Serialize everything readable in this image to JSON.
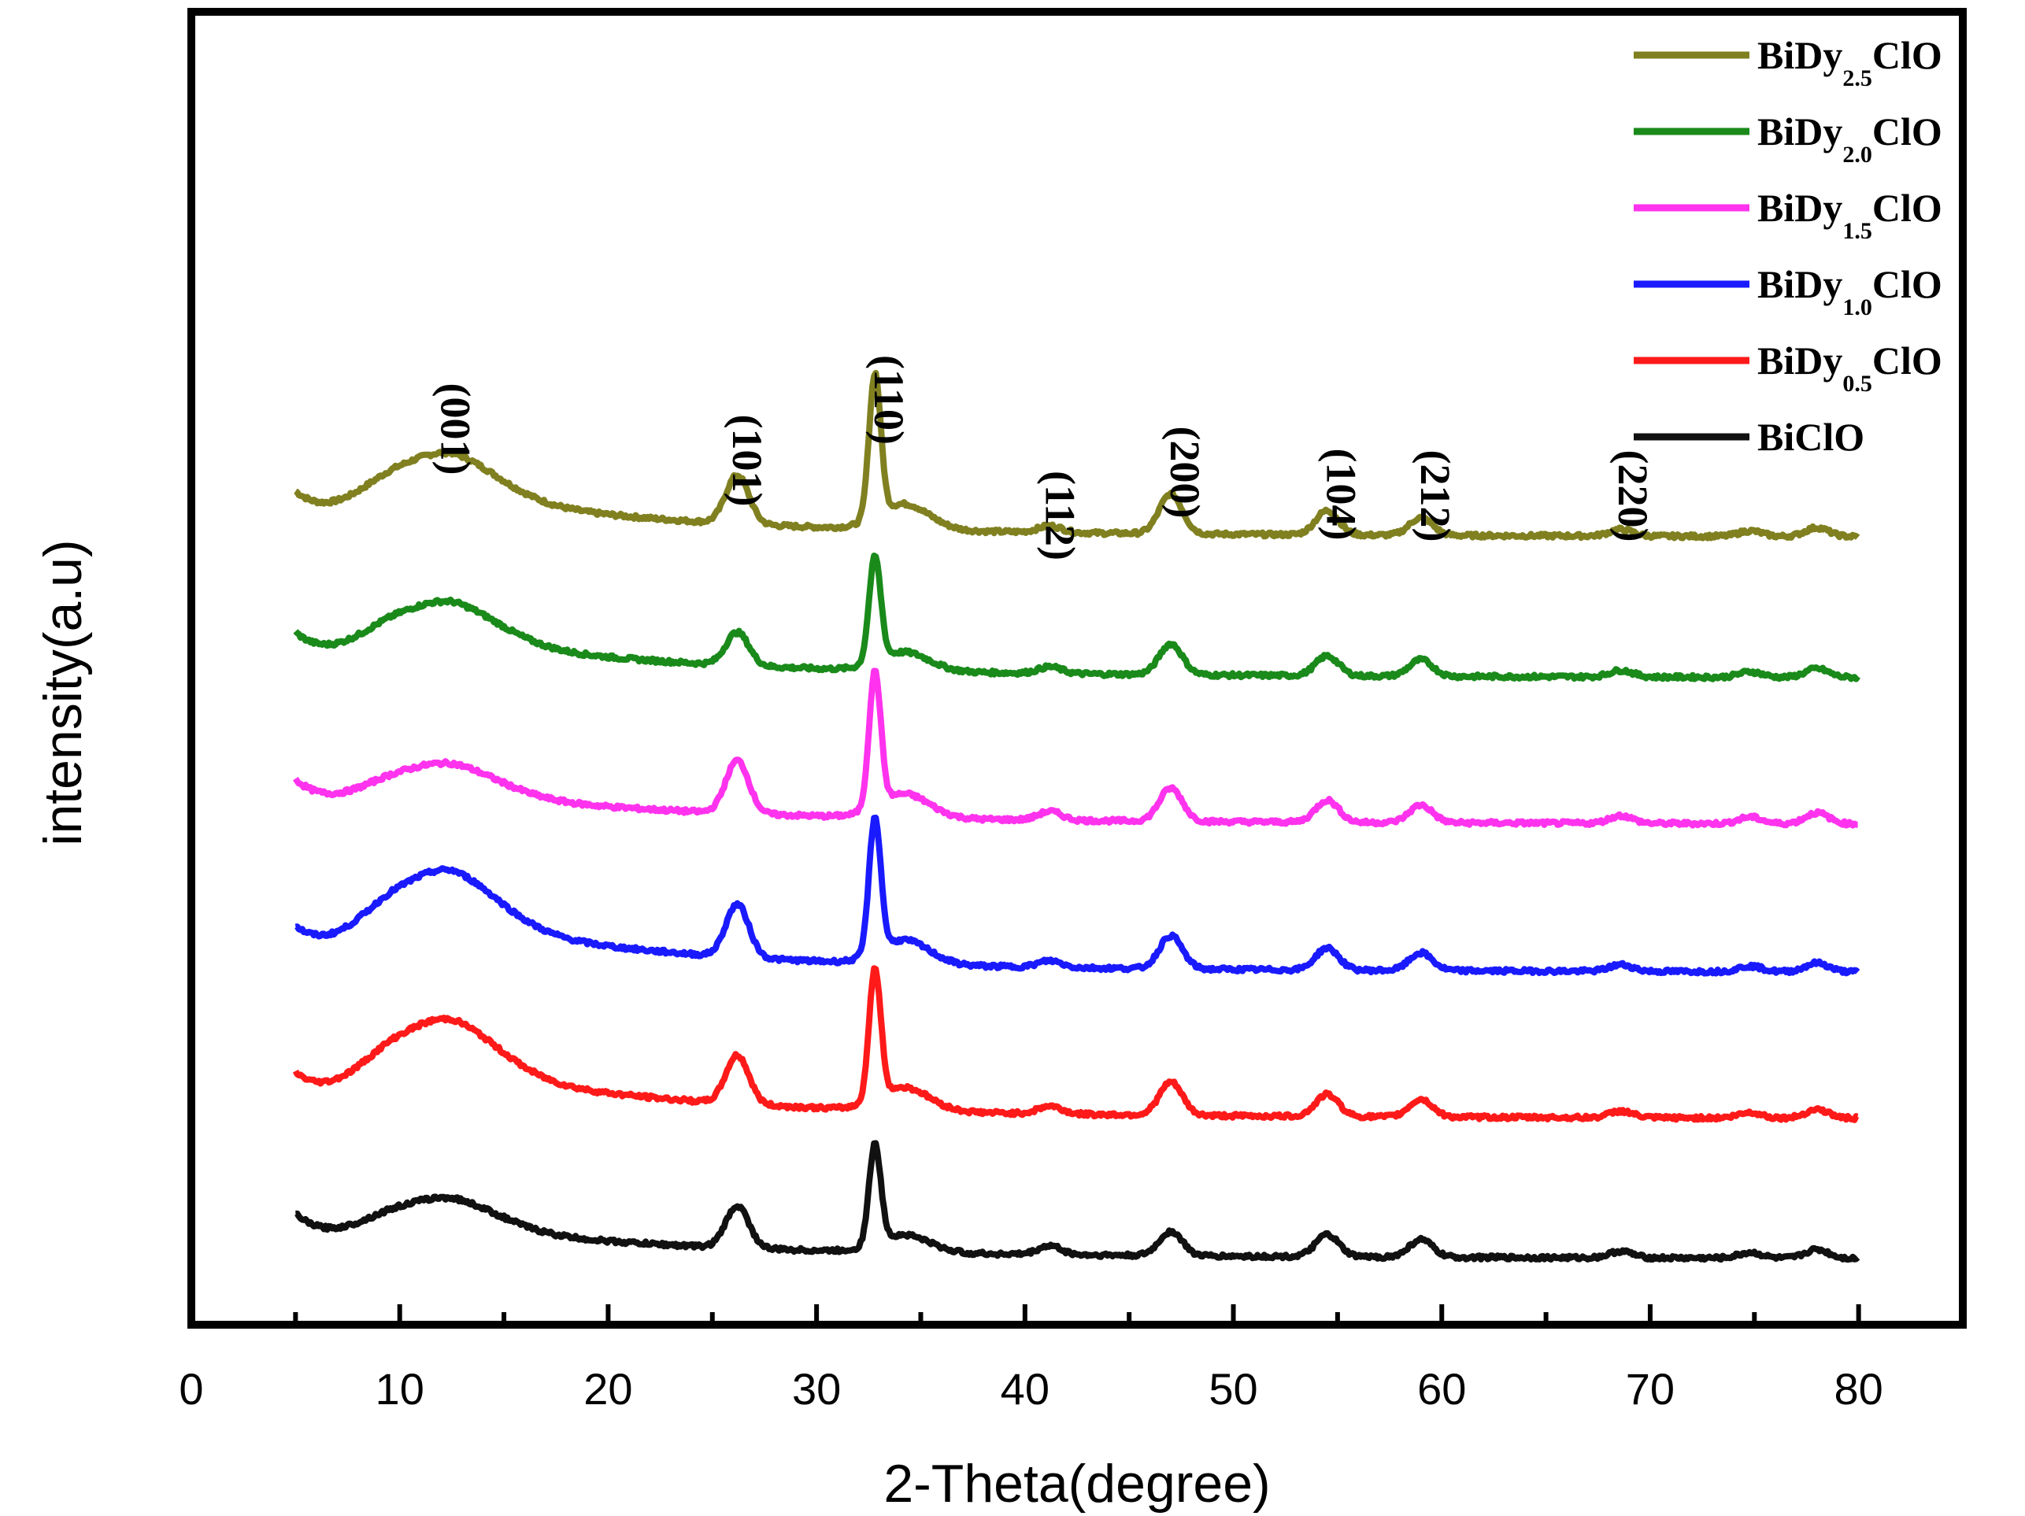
{
  "chart_data": {
    "type": "line",
    "title": "",
    "xlabel": "2-Theta(degree)",
    "ylabel": "intensity(a.u)",
    "xlim": [
      0,
      85
    ],
    "xticks": [
      0,
      10,
      20,
      30,
      40,
      50,
      60,
      70,
      80
    ],
    "yticks_shown": false,
    "grid": false,
    "legend_position": "top-right",
    "x_start": 5,
    "x_end": 80,
    "peak_labels": [
      {
        "label": "(001)",
        "x": 12.0
      },
      {
        "label": "(101)",
        "x": 26.0
      },
      {
        "label": "(110)",
        "x": 32.8
      },
      {
        "label": "(112)",
        "x": 41.0
      },
      {
        "label": "(200)",
        "x": 47.0
      },
      {
        "label": "(104)",
        "x": 54.5
      },
      {
        "label": "(212)",
        "x": 59.0
      },
      {
        "label": "(220)",
        "x": 68.5
      }
    ],
    "series": [
      {
        "name": "BiDy2.5ClO",
        "legend": {
          "base": "BiDy",
          "sub": "2.5",
          "tail": "ClO"
        },
        "color": "#808020",
        "offset": 5,
        "peaks": [
          {
            "x": 26.2,
            "height": 0.44
          },
          {
            "x": 32.8,
            "height": 1.3
          },
          {
            "x": 41.2,
            "height": 0.06
          },
          {
            "x": 47.0,
            "height": 0.36
          },
          {
            "x": 54.5,
            "height": 0.22
          },
          {
            "x": 59.0,
            "height": 0.16
          },
          {
            "x": 68.6,
            "height": 0.06
          },
          {
            "x": 74.8,
            "height": 0.05
          },
          {
            "x": 78.0,
            "height": 0.08
          }
        ],
        "broad_hump": 0.58
      },
      {
        "name": "BiDy2.0ClO",
        "legend": {
          "base": "BiDy",
          "sub": "2.0",
          "tail": "ClO"
        },
        "color": "#1a8a1a",
        "offset": 4,
        "peaks": [
          {
            "x": 26.2,
            "height": 0.3
          },
          {
            "x": 32.8,
            "height": 0.95
          },
          {
            "x": 41.2,
            "height": 0.06
          },
          {
            "x": 47.0,
            "height": 0.28
          },
          {
            "x": 54.5,
            "height": 0.18
          },
          {
            "x": 59.0,
            "height": 0.15
          },
          {
            "x": 68.6,
            "height": 0.06
          },
          {
            "x": 74.8,
            "height": 0.05
          },
          {
            "x": 78.0,
            "height": 0.08
          }
        ],
        "broad_hump": 0.52
      },
      {
        "name": "BiDy1.5ClO",
        "legend": {
          "base": "BiDy",
          "sub": "1.5",
          "tail": "ClO"
        },
        "color": "#ff33ee",
        "offset": 3,
        "peaks": [
          {
            "x": 26.2,
            "height": 0.48
          },
          {
            "x": 32.8,
            "height": 1.22
          },
          {
            "x": 41.2,
            "height": 0.08
          },
          {
            "x": 47.0,
            "height": 0.3
          },
          {
            "x": 54.5,
            "height": 0.2
          },
          {
            "x": 59.0,
            "height": 0.16
          },
          {
            "x": 68.6,
            "height": 0.07
          },
          {
            "x": 74.8,
            "height": 0.06
          },
          {
            "x": 78.0,
            "height": 0.1
          }
        ],
        "broad_hump": 0.4
      },
      {
        "name": "BiDy1.0ClO",
        "legend": {
          "base": "BiDy",
          "sub": "1.0",
          "tail": "ClO"
        },
        "color": "#1a1aff",
        "offset": 2,
        "peaks": [
          {
            "x": 26.2,
            "height": 0.48
          },
          {
            "x": 32.8,
            "height": 1.22
          },
          {
            "x": 41.2,
            "height": 0.06
          },
          {
            "x": 47.0,
            "height": 0.3
          },
          {
            "x": 54.5,
            "height": 0.2
          },
          {
            "x": 59.0,
            "height": 0.16
          },
          {
            "x": 68.6,
            "height": 0.06
          },
          {
            "x": 74.8,
            "height": 0.05
          },
          {
            "x": 78.0,
            "height": 0.08
          }
        ],
        "broad_hump": 0.72
      },
      {
        "name": "BiDy0.5ClO",
        "legend": {
          "base": "BiDy",
          "sub": "0.5",
          "tail": "ClO"
        },
        "color": "#ff1a1a",
        "offset": 1,
        "peaks": [
          {
            "x": 26.2,
            "height": 0.44
          },
          {
            "x": 32.8,
            "height": 1.18
          },
          {
            "x": 41.2,
            "height": 0.07
          },
          {
            "x": 47.0,
            "height": 0.3
          },
          {
            "x": 54.5,
            "height": 0.2
          },
          {
            "x": 59.0,
            "height": 0.16
          },
          {
            "x": 68.6,
            "height": 0.06
          },
          {
            "x": 74.8,
            "height": 0.05
          },
          {
            "x": 78.0,
            "height": 0.08
          }
        ],
        "broad_hump": 0.7
      },
      {
        "name": "BiClO",
        "legend": {
          "base": "BiClO",
          "sub": "",
          "tail": ""
        },
        "color": "#111111",
        "offset": 0,
        "peaks": [
          {
            "x": 26.2,
            "height": 0.38
          },
          {
            "x": 32.8,
            "height": 0.9
          },
          {
            "x": 41.2,
            "height": 0.08
          },
          {
            "x": 47.0,
            "height": 0.22
          },
          {
            "x": 54.5,
            "height": 0.2
          },
          {
            "x": 59.0,
            "height": 0.16
          },
          {
            "x": 68.6,
            "height": 0.06
          },
          {
            "x": 74.8,
            "height": 0.05
          },
          {
            "x": 78.0,
            "height": 0.08
          }
        ],
        "broad_hump": 0.4
      }
    ]
  }
}
